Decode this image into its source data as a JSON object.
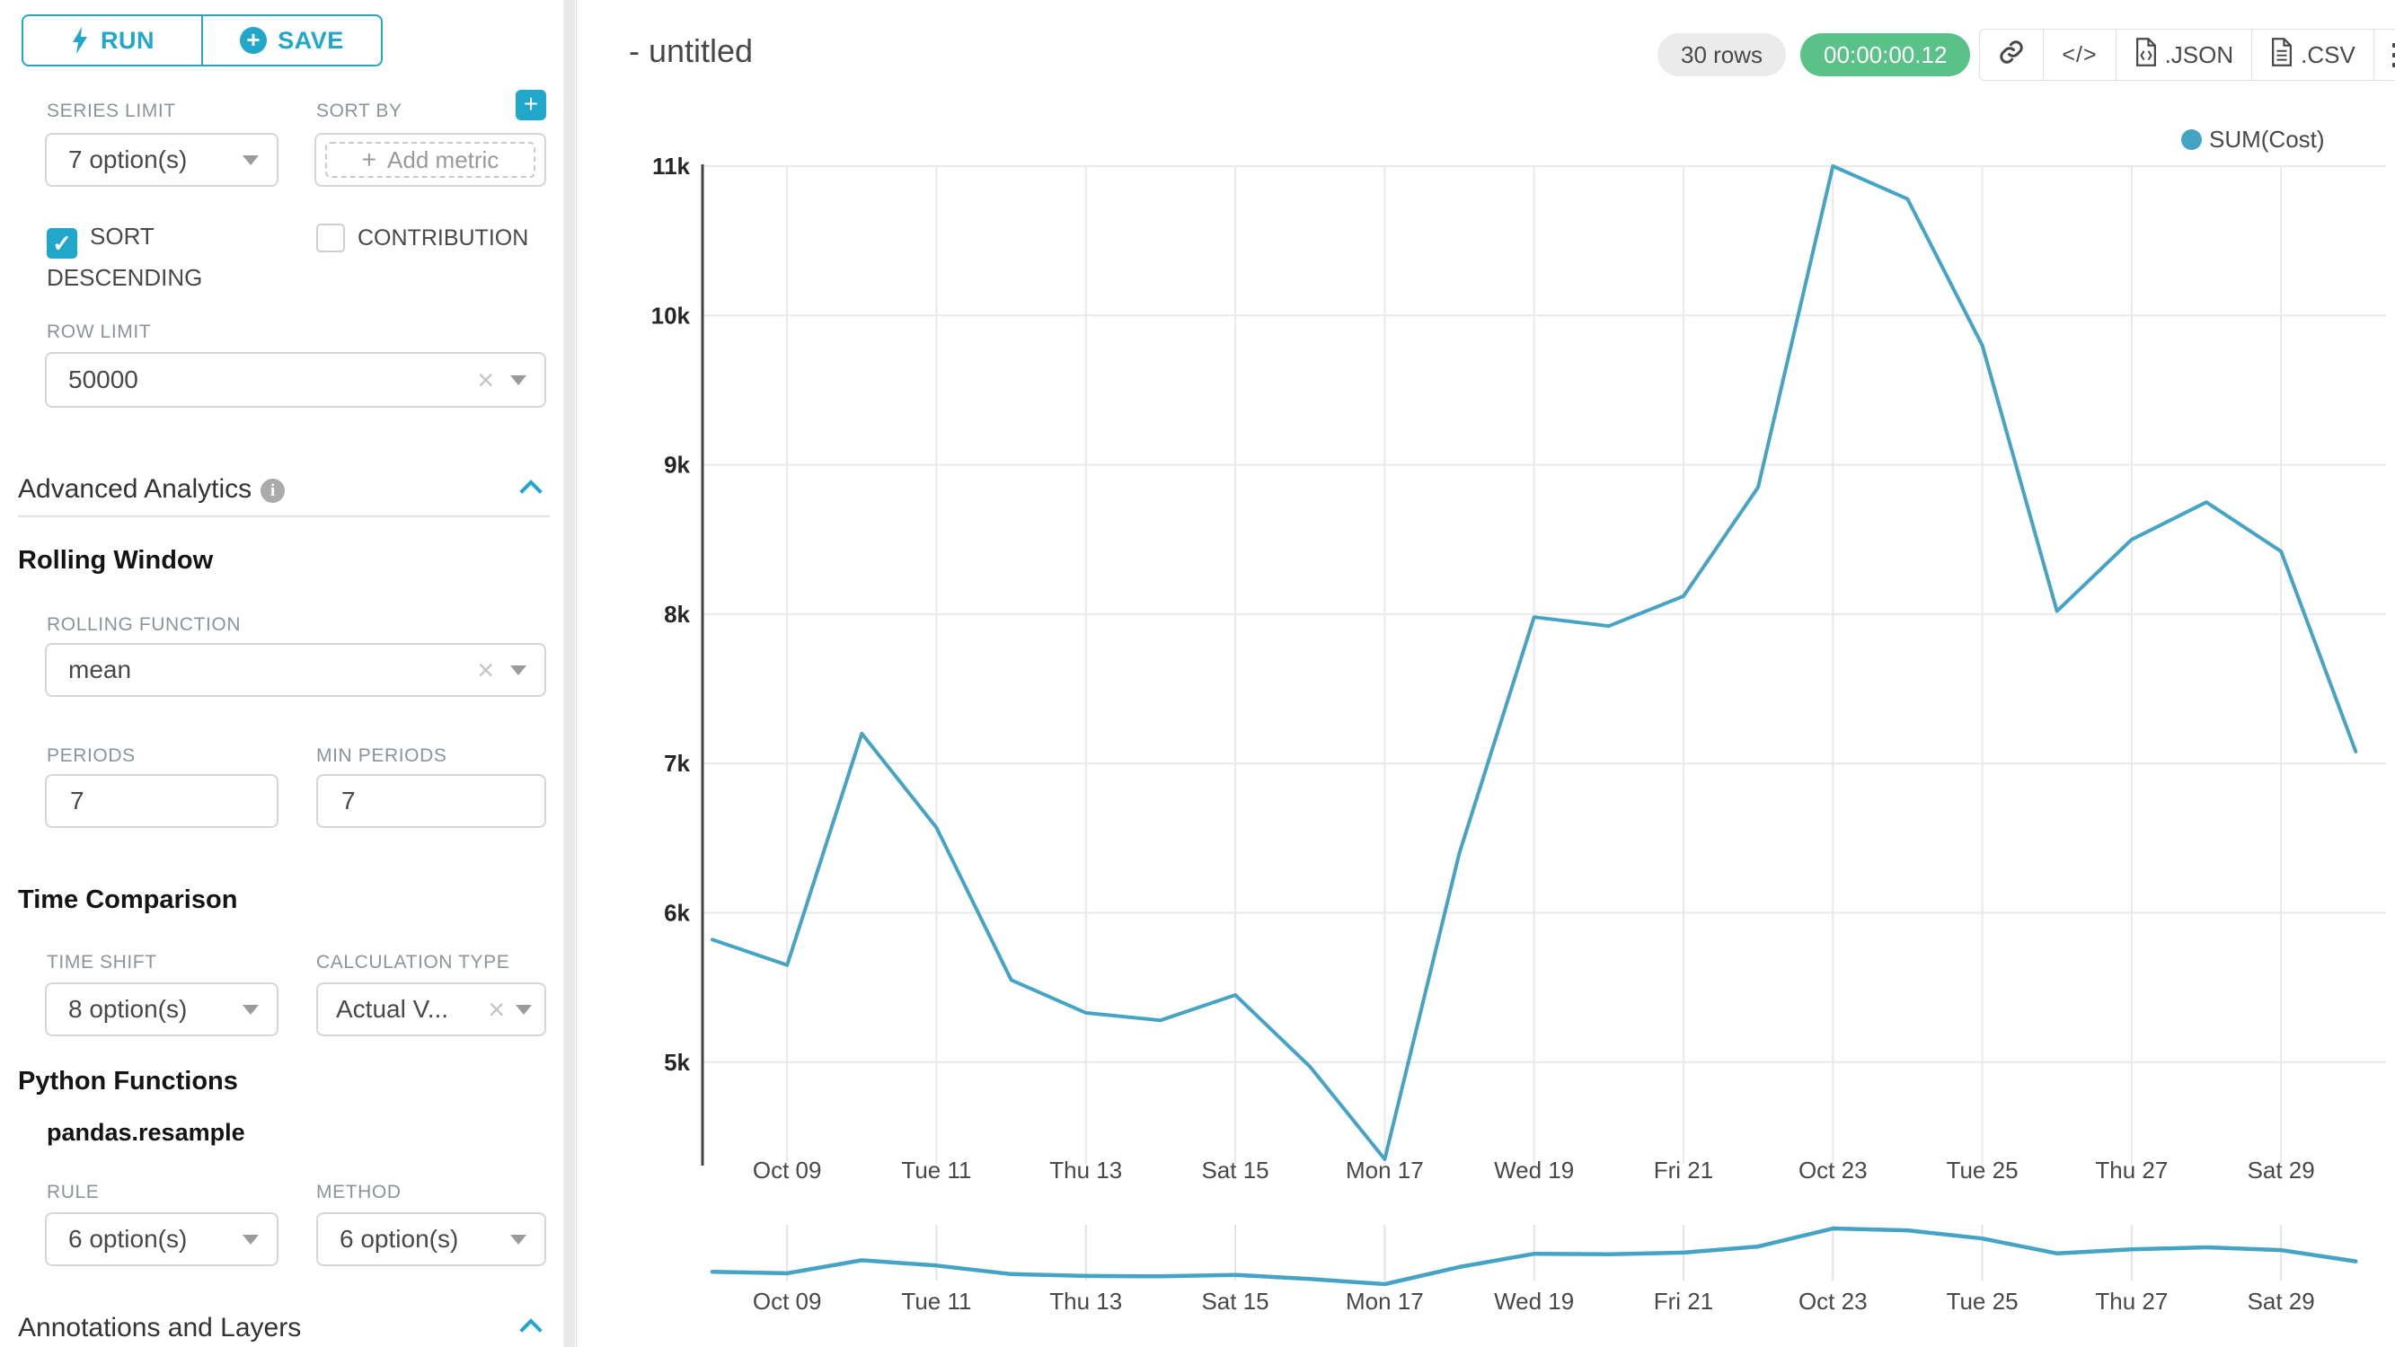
{
  "sidebar": {
    "run_button": "RUN",
    "save_button": "SAVE",
    "series_limit_label": "SERIES LIMIT",
    "series_limit_value": "7 option(s)",
    "sort_by_label": "SORT BY",
    "add_metric_placeholder": "Add metric",
    "sort_descending_label": "SORT DESCENDING",
    "contribution_label": "CONTRIBUTION",
    "row_limit_label": "ROW LIMIT",
    "row_limit_value": "50000",
    "advanced_analytics_title": "Advanced Analytics",
    "rolling_window_title": "Rolling Window",
    "rolling_function_label": "ROLLING FUNCTION",
    "rolling_function_value": "mean",
    "periods_label": "PERIODS",
    "periods_value": "7",
    "min_periods_label": "MIN PERIODS",
    "min_periods_value": "7",
    "time_comparison_title": "Time Comparison",
    "time_shift_label": "TIME SHIFT",
    "time_shift_value": "8 option(s)",
    "calculation_type_label": "CALCULATION TYPE",
    "calculation_type_value": "Actual V...",
    "python_functions_title": "Python Functions",
    "pandas_resample_label": "pandas.resample",
    "rule_label": "RULE",
    "rule_value": "6 option(s)",
    "method_label": "METHOD",
    "method_value": "6 option(s)",
    "annotations_title": "Annotations and Layers"
  },
  "header": {
    "title": "- untitled",
    "rows_badge": "30 rows",
    "timer_badge": "00:00:00.12",
    "code_button": "</>",
    "json_button": ".JSON",
    "csv_button": ".CSV"
  },
  "legend": {
    "label": "SUM(Cost)"
  },
  "colors": {
    "primary": "#20A7C9",
    "success": "#5AC189",
    "line": "#45A4C4",
    "grid": "#e9e9e9",
    "axis": "#444444",
    "tick_text": "#262626",
    "label_text": "#484848"
  },
  "chart_data": {
    "type": "line",
    "title": "- untitled",
    "xlabel": "",
    "ylabel": "",
    "grid": true,
    "legend_entries": [
      "SUM(Cost)"
    ],
    "legend_position": "top-right",
    "x": [
      "Oct 08",
      "Oct 09",
      "Oct 10",
      "Oct 11",
      "Oct 12",
      "Oct 13",
      "Oct 14",
      "Oct 15",
      "Oct 16",
      "Oct 17",
      "Oct 18",
      "Oct 19",
      "Oct 20",
      "Oct 21",
      "Oct 22",
      "Oct 23",
      "Oct 24",
      "Oct 25",
      "Oct 26",
      "Oct 27",
      "Oct 28",
      "Oct 29",
      "Oct 30"
    ],
    "series": [
      {
        "name": "SUM(Cost)",
        "values": [
          5820,
          5650,
          7200,
          6570,
          5550,
          5330,
          5280,
          5450,
          4970,
          4350,
          6400,
          7980,
          7920,
          8120,
          8850,
          11000,
          10780,
          9800,
          8020,
          8500,
          8750,
          8420,
          7080
        ]
      }
    ],
    "x_tick_labels": [
      "Oct 09",
      "Tue 11",
      "Thu 13",
      "Sat 15",
      "Mon 17",
      "Wed 19",
      "Fri 21",
      "Oct 23",
      "Tue 25",
      "Thu 27",
      "Sat 29"
    ],
    "x_tick_indices": [
      1,
      3,
      5,
      7,
      9,
      11,
      13,
      15,
      17,
      19,
      21
    ],
    "y_tick_labels": [
      "5k",
      "6k",
      "7k",
      "8k",
      "9k",
      "10k",
      "11k"
    ],
    "y_tick_values": [
      5000,
      6000,
      7000,
      8000,
      9000,
      10000,
      11000
    ],
    "ylim": [
      4300,
      11000
    ],
    "mini_preview": "same series shown compressed below main chart"
  }
}
